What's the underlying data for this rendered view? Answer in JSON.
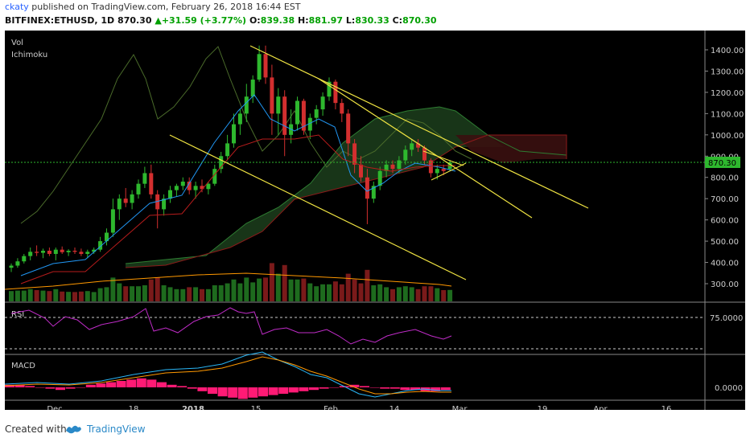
{
  "header": {
    "user": "ckaty",
    "published_text": "published on TradingView.com, February 26, 2018 16:44 EST",
    "symbol": "BITFINEX:ETHUSD, 1D",
    "last": "870.30",
    "change": "+31.59 (+3.77%)",
    "o_label": "O:",
    "o_val": "839.38",
    "h_label": "H:",
    "h_val": "881.97",
    "l_label": "L:",
    "l_val": "830.33",
    "c_label": "C:",
    "c_val": "870.30"
  },
  "indicators": {
    "vol": "Vol",
    "ichimoku": "Ichimoku",
    "rsi": "RSI",
    "macd": "MACD"
  },
  "price_axis": [
    "1400.00",
    "1300.00",
    "1200.00",
    "1100.00",
    "1000.00",
    "900.00",
    "800.00",
    "700.00",
    "600.00",
    "500.00",
    "400.00",
    "300.00"
  ],
  "current_price_tag": "870.30",
  "rsi_axis": "75.0000",
  "macd_axis": "0.0000",
  "time_axis": [
    "Dec",
    "18",
    "2018",
    "15",
    "Feb",
    "14",
    "Mar",
    "19",
    "Apr",
    "16"
  ],
  "footer": {
    "created_with": "Created with",
    "brand": "TradingView"
  },
  "colors": {
    "background": "#000000",
    "up": "#2eb82e",
    "down": "#d32f2f",
    "trendline": "#f0e442",
    "rsi": "#c02cc8",
    "macd": "#29b6f6",
    "signal": "#ff9800",
    "hist": "#ff1a75"
  },
  "chart_data": {
    "type": "candlestick",
    "ohlc": [
      {
        "o": 375,
        "h": 395,
        "l": 355,
        "c": 385
      },
      {
        "o": 385,
        "h": 420,
        "l": 375,
        "c": 405
      },
      {
        "o": 405,
        "h": 440,
        "l": 395,
        "c": 430
      },
      {
        "o": 430,
        "h": 470,
        "l": 410,
        "c": 450
      },
      {
        "o": 450,
        "h": 480,
        "l": 430,
        "c": 445
      },
      {
        "o": 445,
        "h": 465,
        "l": 420,
        "c": 455
      },
      {
        "o": 455,
        "h": 470,
        "l": 430,
        "c": 440
      },
      {
        "o": 440,
        "h": 470,
        "l": 410,
        "c": 460
      },
      {
        "o": 460,
        "h": 475,
        "l": 440,
        "c": 448
      },
      {
        "o": 448,
        "h": 462,
        "l": 430,
        "c": 455
      },
      {
        "o": 455,
        "h": 470,
        "l": 440,
        "c": 450
      },
      {
        "o": 450,
        "h": 465,
        "l": 430,
        "c": 440
      },
      {
        "o": 440,
        "h": 460,
        "l": 420,
        "c": 450
      },
      {
        "o": 450,
        "h": 470,
        "l": 440,
        "c": 460
      },
      {
        "o": 460,
        "h": 520,
        "l": 450,
        "c": 500
      },
      {
        "o": 500,
        "h": 560,
        "l": 480,
        "c": 540
      },
      {
        "o": 540,
        "h": 700,
        "l": 520,
        "c": 650
      },
      {
        "o": 650,
        "h": 720,
        "l": 600,
        "c": 700
      },
      {
        "o": 700,
        "h": 750,
        "l": 660,
        "c": 680
      },
      {
        "o": 680,
        "h": 740,
        "l": 650,
        "c": 720
      },
      {
        "o": 720,
        "h": 790,
        "l": 700,
        "c": 770
      },
      {
        "o": 770,
        "h": 850,
        "l": 750,
        "c": 820
      },
      {
        "o": 820,
        "h": 860,
        "l": 700,
        "c": 720
      },
      {
        "o": 720,
        "h": 740,
        "l": 560,
        "c": 650
      },
      {
        "o": 650,
        "h": 720,
        "l": 620,
        "c": 700
      },
      {
        "o": 700,
        "h": 760,
        "l": 680,
        "c": 740
      },
      {
        "o": 740,
        "h": 770,
        "l": 710,
        "c": 760
      },
      {
        "o": 760,
        "h": 800,
        "l": 740,
        "c": 780
      },
      {
        "o": 780,
        "h": 800,
        "l": 720,
        "c": 740
      },
      {
        "o": 740,
        "h": 780,
        "l": 700,
        "c": 760
      },
      {
        "o": 760,
        "h": 790,
        "l": 730,
        "c": 745
      },
      {
        "o": 745,
        "h": 780,
        "l": 720,
        "c": 770
      },
      {
        "o": 770,
        "h": 860,
        "l": 760,
        "c": 840
      },
      {
        "o": 840,
        "h": 920,
        "l": 820,
        "c": 900
      },
      {
        "o": 900,
        "h": 1000,
        "l": 880,
        "c": 960
      },
      {
        "o": 960,
        "h": 1100,
        "l": 940,
        "c": 1050
      },
      {
        "o": 1050,
        "h": 1120,
        "l": 1000,
        "c": 1100
      },
      {
        "o": 1100,
        "h": 1240,
        "l": 1060,
        "c": 1180
      },
      {
        "o": 1180,
        "h": 1280,
        "l": 1150,
        "c": 1260
      },
      {
        "o": 1260,
        "h": 1420,
        "l": 1250,
        "c": 1380
      },
      {
        "o": 1380,
        "h": 1420,
        "l": 1240,
        "c": 1270
      },
      {
        "o": 1270,
        "h": 1330,
        "l": 1000,
        "c": 1100
      },
      {
        "o": 1100,
        "h": 1220,
        "l": 1000,
        "c": 1180
      },
      {
        "o": 1180,
        "h": 1210,
        "l": 900,
        "c": 1000
      },
      {
        "o": 1000,
        "h": 1120,
        "l": 960,
        "c": 1050
      },
      {
        "o": 1050,
        "h": 1180,
        "l": 1020,
        "c": 1160
      },
      {
        "o": 1160,
        "h": 1170,
        "l": 1000,
        "c": 1020
      },
      {
        "o": 1020,
        "h": 1100,
        "l": 980,
        "c": 1080
      },
      {
        "o": 1080,
        "h": 1140,
        "l": 1050,
        "c": 1120
      },
      {
        "o": 1120,
        "h": 1200,
        "l": 1090,
        "c": 1180
      },
      {
        "o": 1180,
        "h": 1270,
        "l": 1160,
        "c": 1250
      },
      {
        "o": 1250,
        "h": 1260,
        "l": 1120,
        "c": 1150
      },
      {
        "o": 1150,
        "h": 1170,
        "l": 1060,
        "c": 1100
      },
      {
        "o": 1100,
        "h": 1120,
        "l": 900,
        "c": 960
      },
      {
        "o": 960,
        "h": 980,
        "l": 820,
        "c": 860
      },
      {
        "o": 860,
        "h": 900,
        "l": 780,
        "c": 800
      },
      {
        "o": 800,
        "h": 840,
        "l": 580,
        "c": 700
      },
      {
        "o": 700,
        "h": 780,
        "l": 680,
        "c": 760
      },
      {
        "o": 760,
        "h": 850,
        "l": 740,
        "c": 830
      },
      {
        "o": 830,
        "h": 880,
        "l": 800,
        "c": 860
      },
      {
        "o": 860,
        "h": 880,
        "l": 820,
        "c": 840
      },
      {
        "o": 840,
        "h": 900,
        "l": 820,
        "c": 880
      },
      {
        "o": 880,
        "h": 950,
        "l": 860,
        "c": 930
      },
      {
        "o": 930,
        "h": 980,
        "l": 900,
        "c": 960
      },
      {
        "o": 960,
        "h": 980,
        "l": 920,
        "c": 940
      },
      {
        "o": 940,
        "h": 950,
        "l": 860,
        "c": 880
      },
      {
        "o": 880,
        "h": 890,
        "l": 800,
        "c": 820
      },
      {
        "o": 820,
        "h": 860,
        "l": 790,
        "c": 840
      },
      {
        "o": 840,
        "h": 860,
        "l": 810,
        "c": 830
      },
      {
        "o": 839.38,
        "h": 881.97,
        "l": 830.33,
        "c": 870.3
      }
    ],
    "rsi_level": 75,
    "macd_zero": 0
  }
}
